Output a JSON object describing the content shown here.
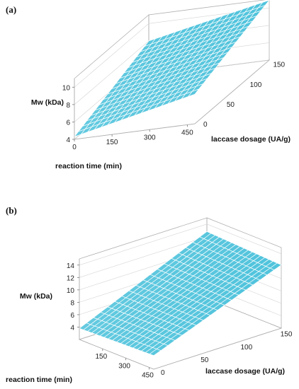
{
  "panels": [
    {
      "label": "(a)"
    },
    {
      "label": "(b)"
    }
  ],
  "chart_data": [
    {
      "type": "surface",
      "xlabel": "reaction time (min)",
      "ylabel": "laccase dosage (UA/g)",
      "zlabel": "Mw (kDa)",
      "xlim": [
        0,
        480
      ],
      "ylim": [
        0,
        160
      ],
      "zlim": [
        4,
        11
      ],
      "xticks": [
        0,
        150,
        300,
        450
      ],
      "yticks": [
        0,
        50,
        100,
        150
      ],
      "zticks": [
        4,
        6,
        8,
        10
      ],
      "surface": {
        "x": [
          0,
          480
        ],
        "y": [
          0,
          160
        ],
        "z_corners": {
          "x0_y0": 4.3,
          "x1_y0": 7.4,
          "x0_y1": 8.0,
          "x1_y1": 10.9
        }
      },
      "surface_color": "#4fc3dc",
      "grid_color": "#ffffff"
    },
    {
      "type": "surface",
      "xlabel": "reaction time (min)",
      "ylabel": "laccase dosage (UA/g)",
      "zlabel": "Mw (kDa)",
      "xlim": [
        0,
        480
      ],
      "ylim": [
        0,
        160
      ],
      "zlim": [
        2,
        15
      ],
      "xticks": [
        150,
        300,
        450
      ],
      "yticks": [
        0,
        50,
        100,
        150
      ],
      "zticks": [
        4,
        6,
        8,
        10,
        12,
        14
      ],
      "surface": {
        "x": [
          0,
          480
        ],
        "y": [
          0,
          160
        ],
        "z_corners": {
          "x0_y0": 3.8,
          "x1_y0": 4.2,
          "x0_y1": 12.8,
          "x1_y1": 12.2
        }
      },
      "surface_color": "#4fc3dc",
      "grid_color": "#ffffff"
    }
  ]
}
